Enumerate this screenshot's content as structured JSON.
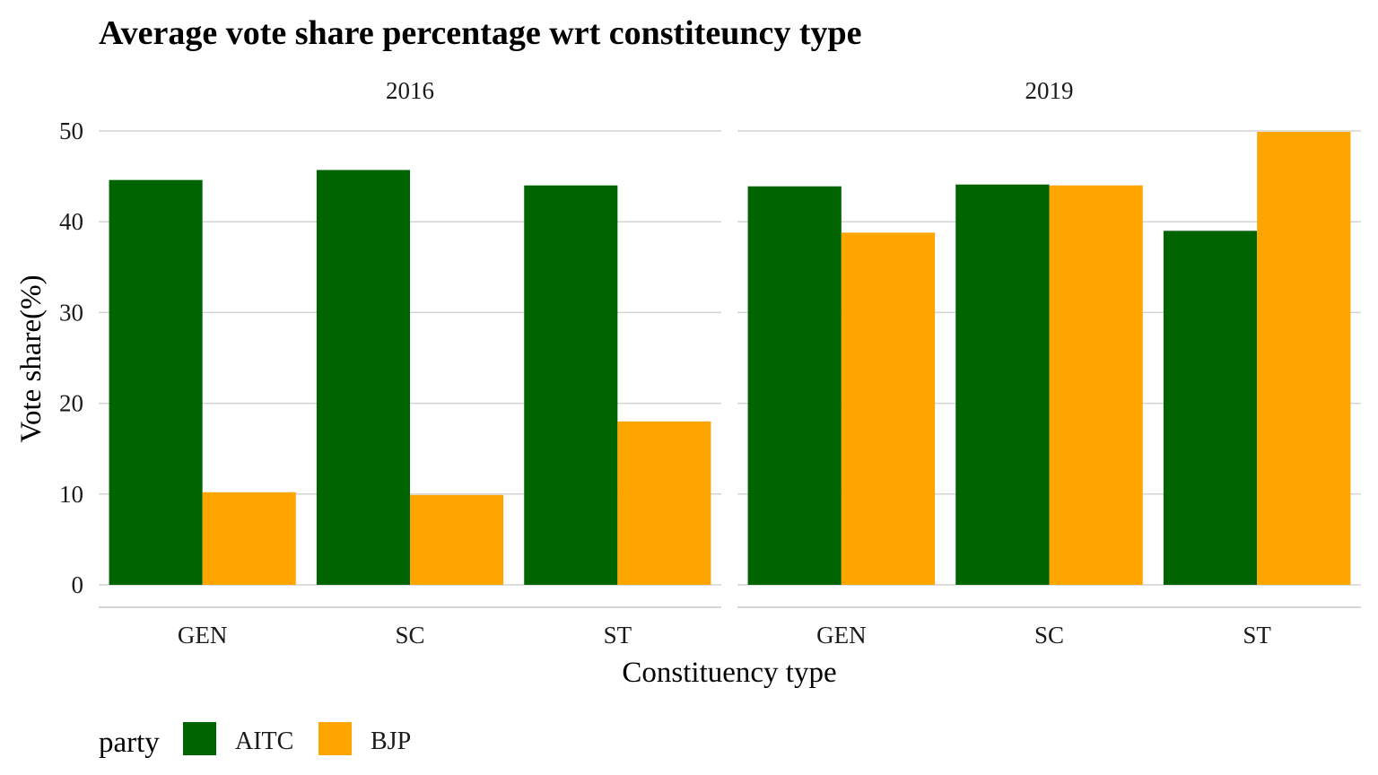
{
  "chart_data": {
    "type": "bar",
    "title": "Average vote share percentage wrt constiteuncy type",
    "xlabel": "Constituency type",
    "ylabel": "Vote share(%)",
    "ylim": [
      0,
      50
    ],
    "yticks": [
      0,
      10,
      20,
      30,
      40,
      50
    ],
    "grid": true,
    "legend": {
      "title": "party",
      "placement": "bottom-left",
      "entries": [
        {
          "name": "AITC",
          "color": "#006400"
        },
        {
          "name": "BJP",
          "color": "#FFA500"
        }
      ]
    },
    "categories": [
      "GEN",
      "SC",
      "ST"
    ],
    "panels": [
      {
        "label": "2016",
        "series": [
          {
            "name": "AITC",
            "values": [
              44.6,
              45.7,
              44.0
            ]
          },
          {
            "name": "BJP",
            "values": [
              10.2,
              9.9,
              18.0
            ]
          }
        ]
      },
      {
        "label": "2019",
        "series": [
          {
            "name": "AITC",
            "values": [
              43.9,
              44.1,
              39.0
            ]
          },
          {
            "name": "BJP",
            "values": [
              38.8,
              44.0,
              49.9
            ]
          }
        ]
      }
    ]
  }
}
